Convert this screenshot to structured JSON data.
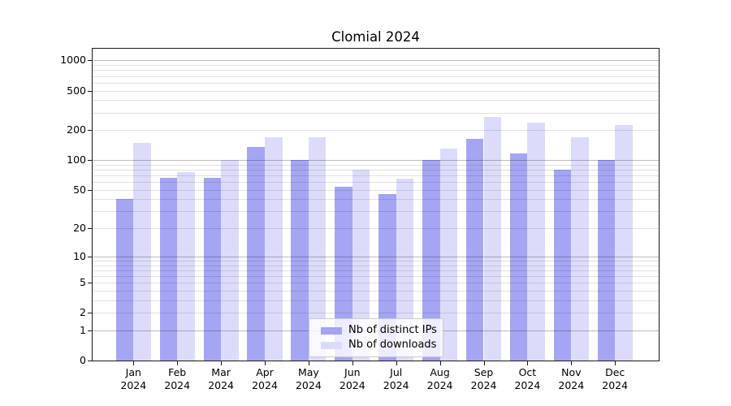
{
  "title": "Clomial 2024",
  "chart_data": {
    "type": "bar",
    "title": "Clomial 2024",
    "categories": [
      "Jan",
      "Feb",
      "Mar",
      "Apr",
      "May",
      "Jun",
      "Jul",
      "Aug",
      "Sep",
      "Oct",
      "Nov",
      "Dec"
    ],
    "category_year": "2024",
    "series": [
      {
        "name": "Nb of distinct IPs",
        "color": "#a5a5f3",
        "values": [
          40,
          66,
          66,
          135,
          100,
          54,
          45,
          100,
          164,
          116,
          80,
          100
        ]
      },
      {
        "name": "Nb of downloads",
        "color": "#dcdcfa",
        "values": [
          150,
          75,
          100,
          170,
          170,
          80,
          65,
          130,
          270,
          237,
          170,
          225
        ]
      }
    ],
    "yscale": "log1p",
    "ylim": [
      0,
      1310
    ],
    "yticks": [
      0,
      1,
      2,
      5,
      10,
      20,
      50,
      100,
      200,
      500,
      1000
    ],
    "grid": true,
    "legend_position": "lower center"
  }
}
